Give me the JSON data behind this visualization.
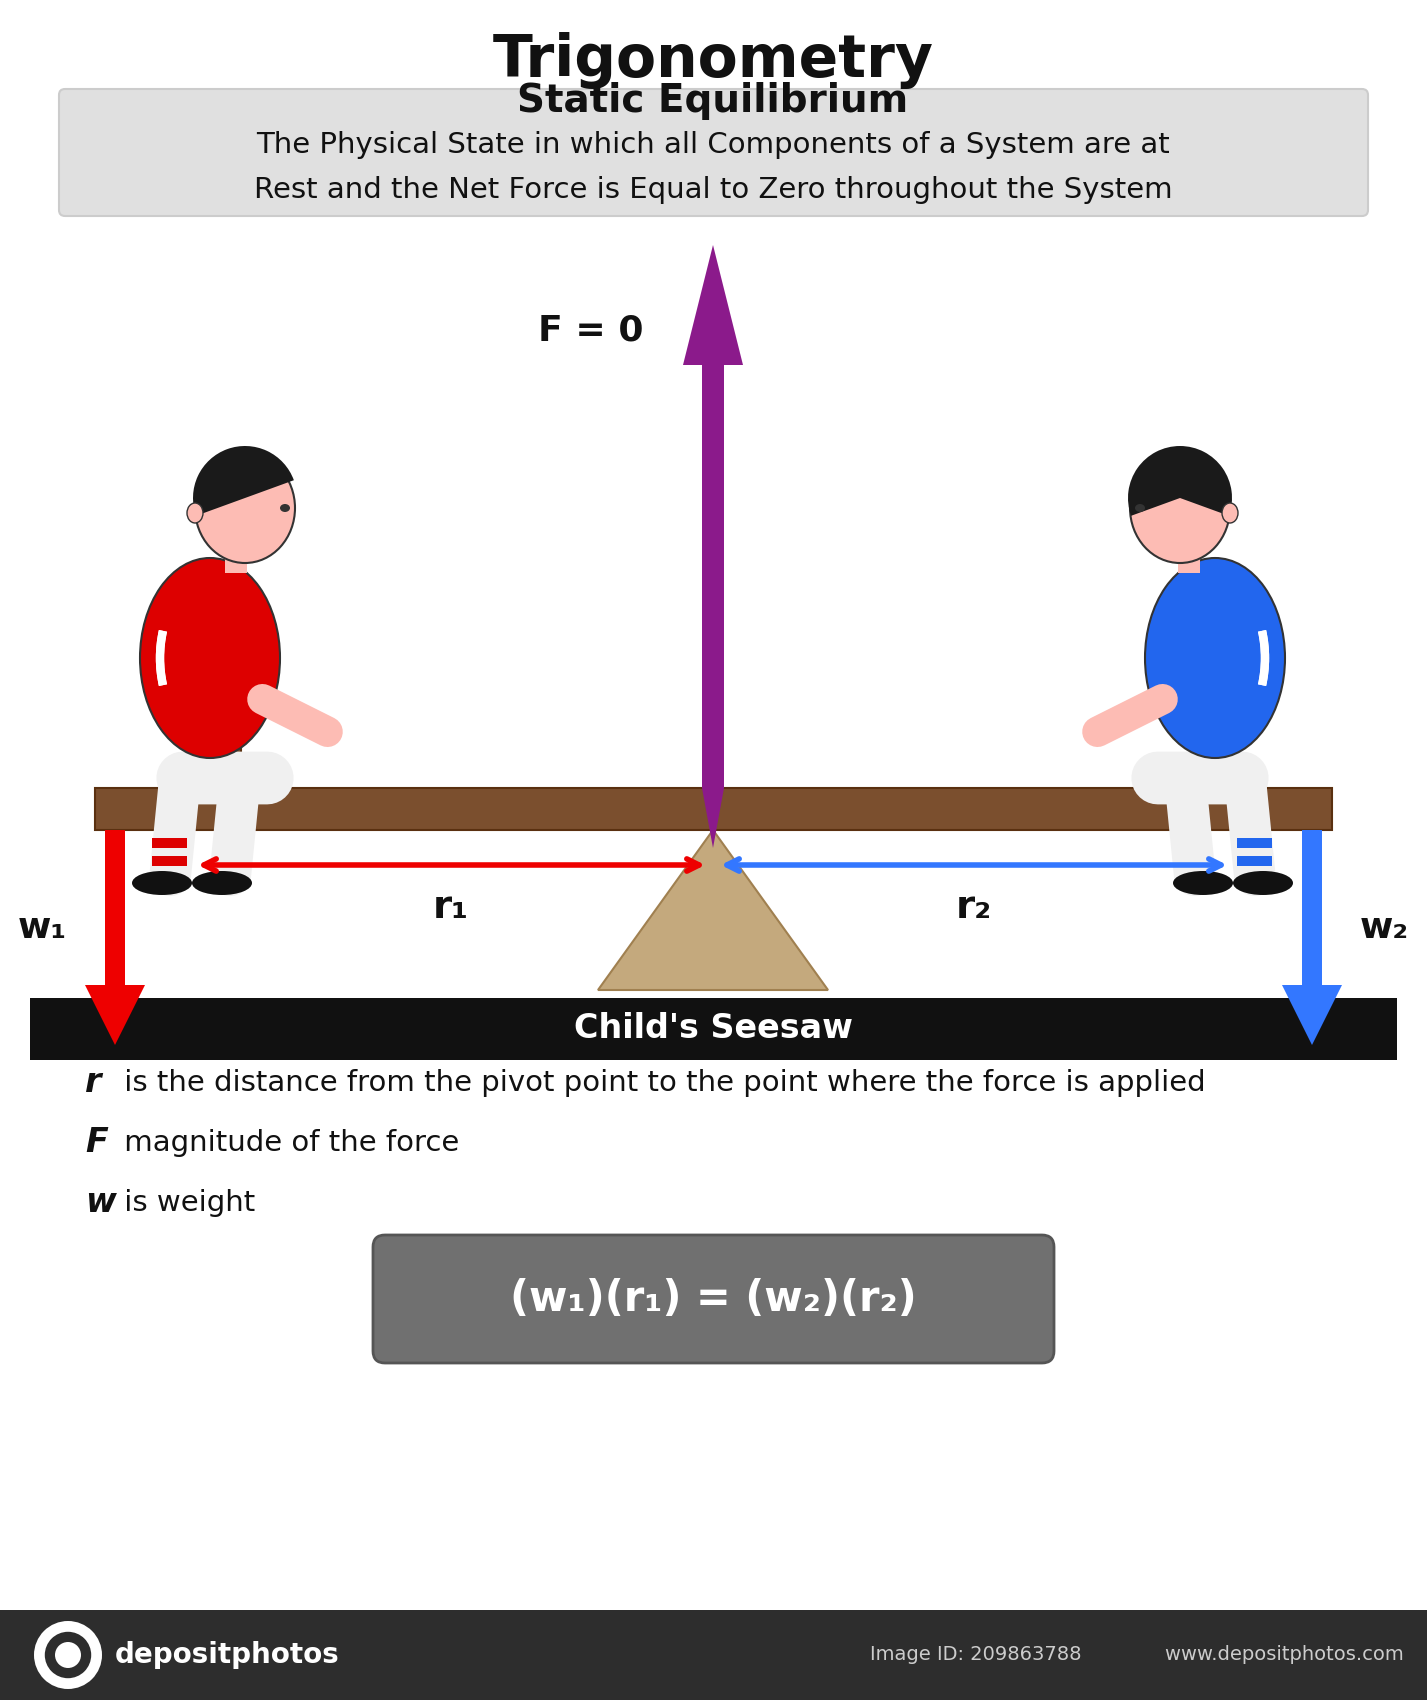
{
  "title": "Trigonometry",
  "subtitle": "Static Equilibrium",
  "description_line1": "The Physical State in which all Components of a System are at",
  "description_line2": "Rest and the Net Force is Equal to Zero throughout the System",
  "seesaw_label": "Child's Seesaw",
  "force_label": "F = 0",
  "bg_color": "#ffffff",
  "desc_box_color": "#e0e0e0",
  "seesaw_bar_color": "#7B4F2E",
  "seesaw_bar_dark": "#5a3010",
  "fulcrum_color": "#C4A97D",
  "fulcrum_edge": "#a08050",
  "arrow_up_color": "#8B1A8B",
  "r1_color": "#EE0000",
  "r2_color": "#3377FF",
  "w1_color": "#EE0000",
  "w2_color": "#3377FF",
  "black_bar_color": "#111111",
  "equation_box_color": "#707070",
  "equation_text_color": "#ffffff",
  "person_skin": "#FDBCB4",
  "person_hair": "#1a1a1a",
  "person_shoe": "#111111",
  "person_stripe": "#ffffff",
  "left_shirt": "#DD0000",
  "right_shirt": "#2266EE",
  "shorts_color": "#f0f0f0",
  "handle_color": "#7B4F2E",
  "footer_color": "#2d2d2d",
  "footer_text": "#cccccc"
}
